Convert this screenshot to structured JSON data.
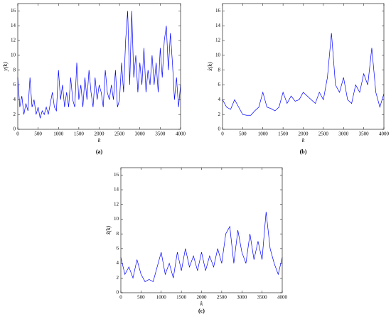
{
  "chart_data": [
    {
      "type": "line",
      "caption": "(a)",
      "xlabel": "k",
      "ylabel": "y(k)",
      "color": "#0000ff",
      "x": [
        0,
        50,
        100,
        150,
        200,
        250,
        300,
        350,
        400,
        450,
        500,
        550,
        600,
        650,
        700,
        750,
        800,
        850,
        900,
        950,
        1000,
        1050,
        1100,
        1150,
        1200,
        1250,
        1300,
        1350,
        1400,
        1450,
        1500,
        1550,
        1600,
        1650,
        1700,
        1750,
        1800,
        1850,
        1900,
        1950,
        2000,
        2050,
        2100,
        2150,
        2200,
        2250,
        2300,
        2350,
        2400,
        2450,
        2500,
        2550,
        2600,
        2650,
        2700,
        2750,
        2800,
        2850,
        2900,
        2950,
        3000,
        3050,
        3100,
        3150,
        3200,
        3250,
        3300,
        3350,
        3400,
        3450,
        3500,
        3550,
        3600,
        3650,
        3700,
        3750,
        3800,
        3850,
        3900,
        3950,
        4000
      ],
      "values": [
        7,
        3,
        4.5,
        2,
        3.5,
        2.5,
        7,
        3,
        4,
        2,
        3,
        1.5,
        2.5,
        2,
        3,
        2,
        3.5,
        5,
        3,
        2.5,
        8,
        4,
        6,
        3,
        5,
        3,
        7,
        4,
        3,
        9,
        4,
        6,
        3,
        7,
        4,
        8,
        5,
        3,
        7,
        4,
        6,
        5,
        3,
        8,
        5,
        4,
        6,
        4,
        8,
        3,
        4,
        9,
        5,
        12,
        16,
        6,
        16,
        7,
        10,
        5,
        9,
        6,
        11,
        5,
        8,
        6,
        10,
        6,
        9,
        5,
        11,
        7,
        12,
        14,
        8,
        13,
        9,
        4,
        7,
        3,
        6
      ],
      "xlim": [
        0,
        4000
      ],
      "ylim": [
        0,
        17
      ],
      "xticks": [
        0,
        500,
        1000,
        1500,
        2000,
        2500,
        3000,
        3500,
        4000
      ],
      "yticks": [
        0,
        2,
        4,
        6,
        8,
        10,
        12,
        14,
        16
      ]
    },
    {
      "type": "line",
      "caption": "(b)",
      "xlabel": "k",
      "ylabel": "x̂(k)",
      "color": "#0000ff",
      "x": [
        0,
        100,
        200,
        300,
        400,
        500,
        600,
        700,
        800,
        900,
        1000,
        1100,
        1200,
        1300,
        1400,
        1500,
        1600,
        1700,
        1800,
        1900,
        2000,
        2100,
        2200,
        2300,
        2400,
        2500,
        2600,
        2700,
        2800,
        2900,
        3000,
        3100,
        3200,
        3300,
        3400,
        3500,
        3600,
        3700,
        3800,
        3900,
        4000
      ],
      "values": [
        4,
        3,
        2.7,
        4,
        3,
        2,
        1.9,
        1.9,
        2.5,
        3,
        5,
        3,
        2.8,
        2.5,
        3,
        5,
        3.5,
        4.5,
        3.8,
        4,
        5,
        4.5,
        4,
        3.5,
        5,
        4,
        7,
        13,
        6,
        5,
        7,
        4,
        3.5,
        6,
        5,
        7.5,
        6,
        11,
        5,
        3,
        4.8
      ],
      "xlim": [
        0,
        4000
      ],
      "ylim": [
        0,
        17
      ],
      "xticks": [
        0,
        500,
        1000,
        1500,
        2000,
        2500,
        3000,
        3500,
        4000
      ],
      "yticks": [
        0,
        2,
        4,
        6,
        8,
        10,
        12,
        14,
        16
      ]
    },
    {
      "type": "line",
      "caption": "(c)",
      "xlabel": "k",
      "ylabel": "x̂(k)",
      "color": "#0000ff",
      "x": [
        0,
        100,
        200,
        300,
        400,
        500,
        600,
        700,
        800,
        900,
        1000,
        1100,
        1200,
        1300,
        1400,
        1500,
        1600,
        1700,
        1800,
        1900,
        2000,
        2100,
        2200,
        2300,
        2400,
        2500,
        2600,
        2700,
        2800,
        2900,
        3000,
        3100,
        3200,
        3300,
        3400,
        3500,
        3600,
        3700,
        3800,
        3900,
        4000
      ],
      "values": [
        4.8,
        2.5,
        3.5,
        2,
        4.5,
        2.5,
        1.5,
        1.8,
        1.5,
        3.5,
        5.5,
        2.5,
        4,
        2,
        5.5,
        3,
        6,
        3.5,
        5,
        3,
        5.5,
        3,
        5,
        3.5,
        6,
        4,
        8,
        9,
        4,
        8.5,
        5.5,
        4,
        8,
        4.5,
        7,
        4.5,
        11,
        6,
        4,
        2.5,
        4.8
      ],
      "xlim": [
        0,
        4000
      ],
      "ylim": [
        0,
        17
      ],
      "xticks": [
        0,
        500,
        1000,
        1500,
        2000,
        2500,
        3000,
        3500,
        4000
      ],
      "yticks": [
        0,
        2,
        4,
        6,
        8,
        10,
        12,
        14,
        16
      ]
    }
  ]
}
